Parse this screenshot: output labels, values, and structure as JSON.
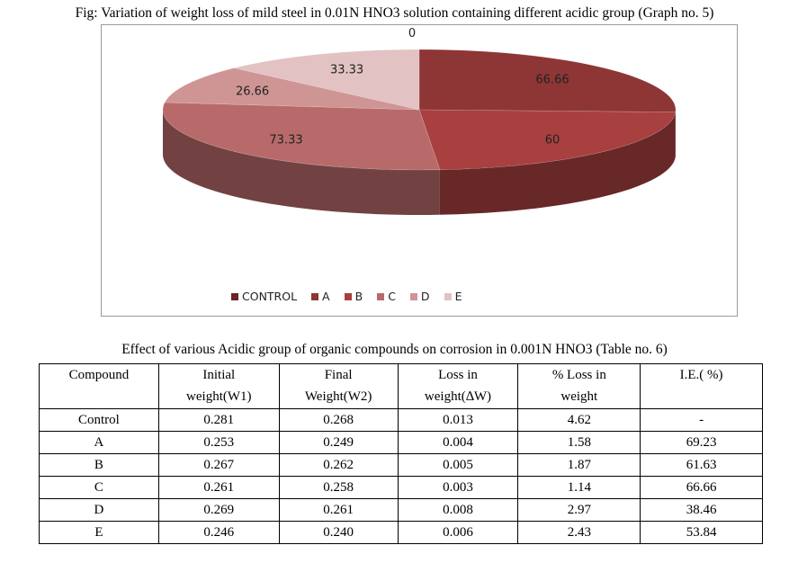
{
  "figure": {
    "title": "Fig: Variation of weight loss of mild steel in 0.01N HNO3 solution containing different acidic group (Graph no. 5)"
  },
  "chart_data": {
    "type": "pie",
    "style": "3d",
    "categories": [
      "CONTROL",
      "A",
      "B",
      "C",
      "D",
      "E"
    ],
    "values": [
      0,
      66.66,
      60,
      73.33,
      26.66,
      33.33
    ],
    "labels": [
      "0",
      "66.66",
      "60",
      "73.33",
      "26.66",
      "33.33"
    ],
    "colors": [
      "#6b2323",
      "#8e3535",
      "#a84040",
      "#b86a6a",
      "#cf9595",
      "#e2c2c2"
    ],
    "legend_position": "bottom"
  },
  "table": {
    "caption": "Effect of various Acidic group of organic compounds on corrosion in 0.001N HNO3 (Table no. 6)",
    "headers": [
      [
        "Compound",
        ""
      ],
      [
        "Initial",
        "weight(W1)"
      ],
      [
        "Final",
        "Weight(W2)"
      ],
      [
        "Loss in",
        "weight(∆W)"
      ],
      [
        "% Loss in",
        "weight"
      ],
      [
        "I.E.( %)",
        ""
      ]
    ],
    "rows": [
      [
        "Control",
        "0.281",
        "0.268",
        "0.013",
        "4.62",
        "-"
      ],
      [
        "A",
        "0.253",
        "0.249",
        "0.004",
        "1.58",
        "69.23"
      ],
      [
        "B",
        "0.267",
        "0.262",
        "0.005",
        "1.87",
        "61.63"
      ],
      [
        "C",
        "0.261",
        "0.258",
        "0.003",
        "1.14",
        "66.66"
      ],
      [
        "D",
        "0.269",
        "0.261",
        "0.008",
        "2.97",
        "38.46"
      ],
      [
        "E",
        "0.246",
        "0.240",
        "0.006",
        "2.43",
        "53.84"
      ]
    ]
  }
}
